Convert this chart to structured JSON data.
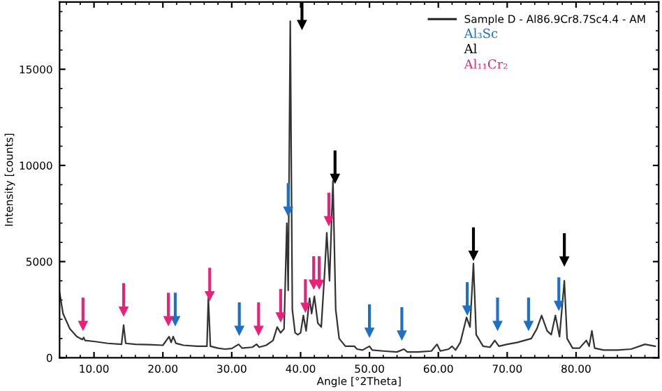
{
  "chart_data": {
    "type": "line",
    "xlabel": "Angle [°2Theta]",
    "ylabel": "Intensity [counts]",
    "xlim": [
      5,
      92
    ],
    "ylim": [
      0,
      18500
    ],
    "xticks": [
      {
        "value": 10,
        "label": "10.00"
      },
      {
        "value": 20,
        "label": "20.00"
      },
      {
        "value": 30,
        "label": "30.00"
      },
      {
        "value": 40,
        "label": "40.00"
      },
      {
        "value": 50,
        "label": "50.00"
      },
      {
        "value": 60,
        "label": "60.00"
      },
      {
        "value": 70,
        "label": "70.00"
      },
      {
        "value": 80,
        "label": "80.00"
      }
    ],
    "yticks": [
      0,
      5000,
      10000,
      15000
    ],
    "grid": false,
    "legend": "top right",
    "series": [
      {
        "name": "Sample D - Al86.9Cr8.7Sc4.4 - AM",
        "color": "#333333",
        "marker": "none",
        "x": [
          5,
          5.5,
          6.5,
          7.5,
          8.3,
          8.5,
          8.7,
          10,
          12,
          14,
          14.3,
          14.6,
          16,
          18,
          20,
          20.9,
          21.2,
          21.5,
          21.9,
          23,
          25,
          26.4,
          26.6,
          26.9,
          28,
          29,
          30,
          31,
          31.5,
          33,
          33.6,
          34,
          35,
          36,
          36.6,
          37.1,
          37.6,
          38.0,
          38.2,
          38.5,
          38.8,
          39.2,
          39.6,
          40.0,
          40.4,
          40.8,
          41.3,
          41.6,
          42.0,
          42.5,
          43.0,
          43.5,
          43.8,
          44.2,
          44.7,
          45.1,
          45.6,
          46.5,
          47.8,
          48.2,
          49,
          50,
          50.4,
          52,
          54,
          55,
          55.5,
          57,
          59,
          59.8,
          60.3,
          61.5,
          62,
          62.5,
          63.2,
          64.1,
          64.6,
          65.1,
          65.5,
          66.5,
          67.5,
          68.2,
          68.8,
          70,
          71.5,
          72.5,
          73.5,
          74.3,
          75,
          75.8,
          76.4,
          77,
          77.6,
          78.3,
          78.7,
          79.5,
          80.5,
          81.5,
          81.9,
          82.3,
          82.7,
          84,
          86,
          88,
          90,
          91.5
        ],
        "values": [
          3400,
          2300,
          1500,
          1100,
          950,
          1050,
          900,
          850,
          750,
          700,
          1700,
          750,
          700,
          680,
          650,
          1100,
          800,
          1100,
          750,
          650,
          600,
          600,
          3100,
          600,
          500,
          450,
          480,
          700,
          500,
          550,
          700,
          550,
          650,
          900,
          1600,
          1300,
          1500,
          7000,
          3500,
          17500,
          2500,
          1300,
          1200,
          1300,
          2200,
          1400,
          3100,
          2300,
          3200,
          1800,
          1600,
          4500,
          6500,
          4000,
          9200,
          2500,
          1000,
          600,
          600,
          450,
          400,
          600,
          400,
          350,
          300,
          450,
          300,
          300,
          350,
          700,
          350,
          450,
          600,
          400,
          800,
          2100,
          1600,
          4900,
          1200,
          600,
          550,
          900,
          600,
          700,
          800,
          900,
          1000,
          1500,
          2200,
          1400,
          1200,
          2200,
          1100,
          4000,
          1000,
          500,
          500,
          900,
          600,
          1400,
          500,
          400,
          400,
          450,
          700,
          600
        ]
      },
      {
        "name": "Al₃Sc",
        "type": "scatter",
        "color": "#1f6fc5",
        "marker": "triangle",
        "x": [
          21.8,
          31.1,
          38.2,
          50.0,
          54.7,
          64.2,
          68.6,
          73.1,
          77.5
        ],
        "values": [
          1900,
          1400,
          7600,
          1300,
          1150,
          2450,
          1650,
          1650,
          2700
        ]
      },
      {
        "name": "Al",
        "type": "scatter",
        "color": "#000000",
        "marker": "triangle",
        "x": [
          40.2,
          45.0,
          65.1,
          78.3
        ],
        "values": [
          17300,
          9300,
          5300,
          5000
        ]
      },
      {
        "name": "Al₁₁Cr₂",
        "type": "scatter",
        "color": "#e8227a",
        "marker": "triangle",
        "x": [
          8.4,
          14.3,
          20.8,
          26.8,
          33.9,
          37.1,
          40.7,
          41.9,
          42.7,
          44.1
        ],
        "values": [
          1650,
          2400,
          1900,
          3200,
          1400,
          2100,
          2600,
          3800,
          3800,
          7100
        ]
      }
    ]
  }
}
